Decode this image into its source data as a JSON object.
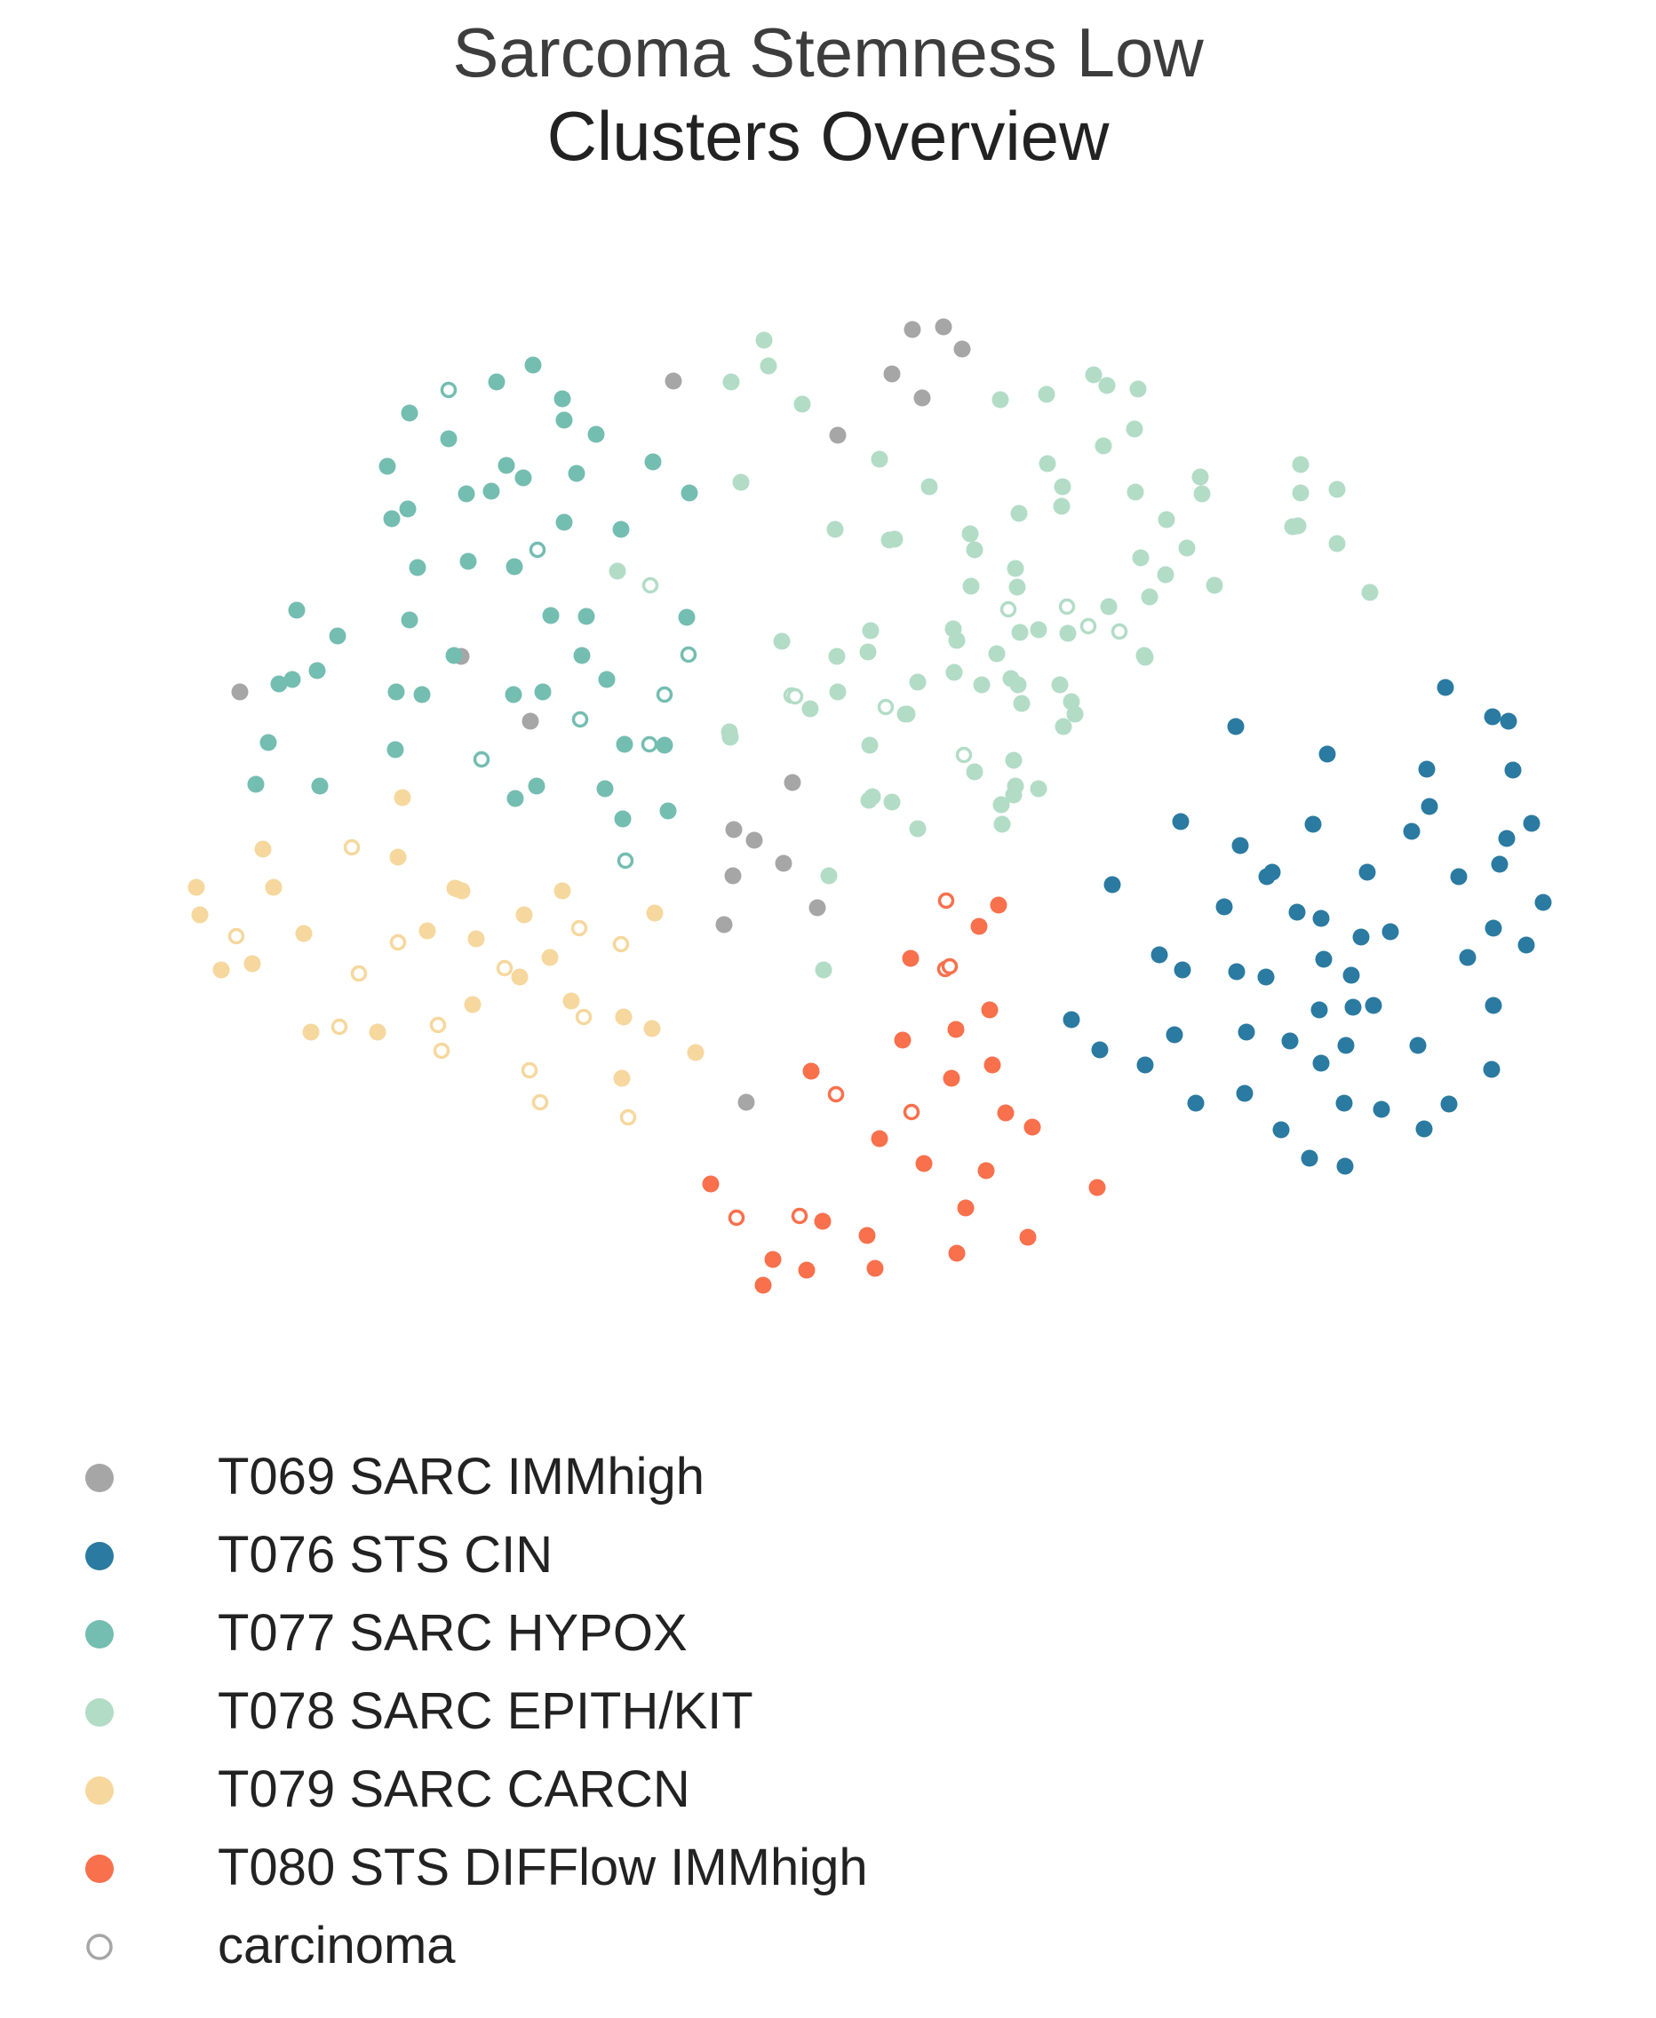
{
  "chart_data": {
    "type": "scatter",
    "title": "Sarcoma Stemness Low",
    "subtitle": "Clusters Overview",
    "xlabel": "",
    "ylabel": "",
    "grid": false,
    "axes_visible": false,
    "legend_position": "bottom-left",
    "series": [
      {
        "name": "T069 SARC IMMhigh",
        "color": "#a6a6a6",
        "points": [
          [
            1027,
            371
          ],
          [
            1062,
            368
          ],
          [
            1083,
            393
          ],
          [
            1004,
            421
          ],
          [
            1038,
            448
          ],
          [
            943,
            490
          ],
          [
            758,
            429
          ],
          [
            519,
            739
          ],
          [
            270,
            779
          ],
          [
            597,
            812
          ],
          [
            892,
            881
          ],
          [
            826,
            934
          ],
          [
            849,
            946
          ],
          [
            882,
            972
          ],
          [
            825,
            986
          ],
          [
            920,
            1022
          ],
          [
            815,
            1041
          ],
          [
            840,
            1241
          ]
        ]
      },
      {
        "name": "T076 STS CIN",
        "color": "#2a7aa1",
        "points": [
          [
            1627,
            774
          ],
          [
            1680,
            807
          ],
          [
            1698,
            812
          ],
          [
            1391,
            818
          ],
          [
            1494,
            849
          ],
          [
            1606,
            866
          ],
          [
            1703,
            867
          ],
          [
            1329,
            925
          ],
          [
            1478,
            928
          ],
          [
            1724,
            927
          ],
          [
            1609,
            908
          ],
          [
            1589,
            936
          ],
          [
            1396,
            952
          ],
          [
            1696,
            944
          ],
          [
            1688,
            973
          ],
          [
            1252,
            996
          ],
          [
            1432,
            982
          ],
          [
            1426,
            987
          ],
          [
            1539,
            982
          ],
          [
            1642,
            987
          ],
          [
            1737,
            1016
          ],
          [
            1378,
            1021
          ],
          [
            1460,
            1027
          ],
          [
            1487,
            1034
          ],
          [
            1532,
            1055
          ],
          [
            1565,
            1049
          ],
          [
            1681,
            1045
          ],
          [
            1718,
            1064
          ],
          [
            1305,
            1075
          ],
          [
            1490,
            1080
          ],
          [
            1652,
            1078
          ],
          [
            1331,
            1092
          ],
          [
            1392,
            1094
          ],
          [
            1425,
            1100
          ],
          [
            1521,
            1098
          ],
          [
            1485,
            1137
          ],
          [
            1523,
            1134
          ],
          [
            1546,
            1132
          ],
          [
            1681,
            1132
          ],
          [
            1206,
            1148
          ],
          [
            1322,
            1165
          ],
          [
            1403,
            1162
          ],
          [
            1452,
            1172
          ],
          [
            1515,
            1177
          ],
          [
            1238,
            1182
          ],
          [
            1289,
            1199
          ],
          [
            1596,
            1177
          ],
          [
            1487,
            1197
          ],
          [
            1679,
            1204
          ],
          [
            1401,
            1231
          ],
          [
            1346,
            1242
          ],
          [
            1513,
            1242
          ],
          [
            1555,
            1249
          ],
          [
            1631,
            1243
          ],
          [
            1442,
            1272
          ],
          [
            1603,
            1271
          ],
          [
            1474,
            1304
          ],
          [
            1514,
            1313
          ]
        ]
      },
      {
        "name": "T077 SARC HYPOX",
        "color": "#74bdb1",
        "points": [
          [
            600,
            411
          ],
          [
            559,
            430
          ],
          [
            633,
            449
          ],
          [
            461,
            465
          ],
          [
            505,
            494
          ],
          [
            671,
            489
          ],
          [
            635,
            473
          ],
          [
            436,
            525
          ],
          [
            570,
            524
          ],
          [
            589,
            538
          ],
          [
            649,
            533
          ],
          [
            735,
            520
          ],
          [
            525,
            556
          ],
          [
            553,
            553
          ],
          [
            776,
            555
          ],
          [
            441,
            584
          ],
          [
            459,
            573
          ],
          [
            635,
            588
          ],
          [
            699,
            596
          ],
          [
            470,
            639
          ],
          [
            527,
            632
          ],
          [
            579,
            638
          ],
          [
            334,
            687
          ],
          [
            380,
            716
          ],
          [
            461,
            698
          ],
          [
            620,
            693
          ],
          [
            660,
            694
          ],
          [
            773,
            695
          ],
          [
            357,
            755
          ],
          [
            511,
            738
          ],
          [
            314,
            770
          ],
          [
            329,
            765
          ],
          [
            446,
            779
          ],
          [
            475,
            782
          ],
          [
            578,
            782
          ],
          [
            611,
            779
          ],
          [
            655,
            738
          ],
          [
            683,
            765
          ],
          [
            302,
            836
          ],
          [
            445,
            844
          ],
          [
            703,
            838
          ],
          [
            748,
            839
          ],
          [
            288,
            883
          ],
          [
            360,
            885
          ],
          [
            580,
            899
          ],
          [
            604,
            885
          ],
          [
            681,
            888
          ],
          [
            701,
            922
          ],
          [
            752,
            913
          ]
        ]
      },
      {
        "name": "T078 SARC EPITH/KIT",
        "color": "#b2dcc6",
        "points": [
          [
            860,
            383
          ],
          [
            865,
            412
          ],
          [
            823,
            430
          ],
          [
            903,
            455
          ],
          [
            1126,
            450
          ],
          [
            1178,
            444
          ],
          [
            1179,
            522
          ],
          [
            1281,
            438
          ],
          [
            1231,
            422
          ],
          [
            1246,
            434
          ],
          [
            1277,
            483
          ],
          [
            1242,
            502
          ],
          [
            990,
            517
          ],
          [
            1464,
            523
          ],
          [
            834,
            543
          ],
          [
            1046,
            548
          ],
          [
            1196,
            548
          ],
          [
            1278,
            554
          ],
          [
            1353,
            556
          ],
          [
            1464,
            555
          ],
          [
            1351,
            537
          ],
          [
            1505,
            551
          ],
          [
            1147,
            578
          ],
          [
            1195,
            570
          ],
          [
            1313,
            585
          ],
          [
            1461,
            592
          ],
          [
            1092,
            601
          ],
          [
            1007,
            607
          ],
          [
            1097,
            619
          ],
          [
            1336,
            617
          ],
          [
            1284,
            628
          ],
          [
            1312,
            647
          ],
          [
            1093,
            660
          ],
          [
            1455,
            593
          ],
          [
            1505,
            612
          ],
          [
            940,
            596
          ],
          [
            1001,
            608
          ],
          [
            1143,
            640
          ],
          [
            1367,
            659
          ],
          [
            695,
            643
          ],
          [
            1145,
            661
          ],
          [
            1248,
            683
          ],
          [
            1294,
            672
          ],
          [
            1542,
            667
          ],
          [
            1073,
            708
          ],
          [
            1169,
            709
          ],
          [
            1148,
            712
          ],
          [
            1202,
            713
          ],
          [
            980,
            710
          ],
          [
            1077,
            721
          ],
          [
            1288,
            738
          ],
          [
            1122,
            736
          ],
          [
            1074,
            757
          ],
          [
            1105,
            771
          ],
          [
            1146,
            771
          ],
          [
            1206,
            790
          ],
          [
            1289,
            740
          ],
          [
            1150,
            792
          ],
          [
            1193,
            771
          ],
          [
            1210,
            804
          ],
          [
            1138,
            764
          ],
          [
            912,
            798
          ],
          [
            1021,
            804
          ],
          [
            1197,
            818
          ],
          [
            880,
            722
          ],
          [
            977,
            734
          ],
          [
            942,
            739
          ],
          [
            1033,
            768
          ],
          [
            821,
            824
          ],
          [
            822,
            830
          ],
          [
            943,
            779
          ],
          [
            979,
            839
          ],
          [
            1019,
            804
          ],
          [
            1004,
            903
          ],
          [
            1141,
            856
          ],
          [
            1169,
            888
          ],
          [
            1128,
            928
          ],
          [
            1033,
            933
          ],
          [
            978,
            901
          ],
          [
            1143,
            885
          ],
          [
            1141,
            895
          ],
          [
            1127,
            906
          ],
          [
            1097,
            869
          ],
          [
            982,
            897
          ],
          [
            933,
            986
          ],
          [
            927,
            1092
          ]
        ]
      },
      {
        "name": "T079 SARC CARCN",
        "color": "#f6d79d",
        "points": [
          [
            453,
            898
          ],
          [
            296,
            956
          ],
          [
            448,
            965
          ],
          [
            221,
            999
          ],
          [
            308,
            999
          ],
          [
            512,
            1000
          ],
          [
            515,
            1001
          ],
          [
            225,
            1030
          ],
          [
            633,
            1003
          ],
          [
            520,
            1003
          ],
          [
            481,
            1048
          ],
          [
            536,
            1057
          ],
          [
            590,
            1030
          ],
          [
            737,
            1028
          ],
          [
            342,
            1051
          ],
          [
            619,
            1078
          ],
          [
            284,
            1085
          ],
          [
            249,
            1092
          ],
          [
            585,
            1100
          ],
          [
            532,
            1131
          ],
          [
            702,
            1145
          ],
          [
            643,
            1127
          ],
          [
            350,
            1162
          ],
          [
            734,
            1158
          ],
          [
            425,
            1162
          ],
          [
            783,
            1185
          ],
          [
            700,
            1214
          ]
        ]
      },
      {
        "name": "T080 STS DIFFlow IMMhigh",
        "color": "#f8704c",
        "points": [
          [
            1124,
            1019
          ],
          [
            1102,
            1043
          ],
          [
            1025,
            1079
          ],
          [
            1114,
            1137
          ],
          [
            1076,
            1159
          ],
          [
            1016,
            1171
          ],
          [
            913,
            1206
          ],
          [
            1117,
            1199
          ],
          [
            1071,
            1214
          ],
          [
            1132,
            1253
          ],
          [
            1162,
            1269
          ],
          [
            990,
            1282
          ],
          [
            1110,
            1318
          ],
          [
            1040,
            1310
          ],
          [
            800,
            1333
          ],
          [
            1235,
            1337
          ],
          [
            1087,
            1360
          ],
          [
            1157,
            1393
          ],
          [
            926,
            1375
          ],
          [
            976,
            1391
          ],
          [
            870,
            1418
          ],
          [
            1077,
            1411
          ],
          [
            985,
            1428
          ],
          [
            908,
            1430
          ],
          [
            859,
            1447
          ]
        ]
      },
      {
        "name": "carcinoma",
        "color": "#a6a6a6",
        "open": true,
        "points": [
          [
            505,
            439
          ],
          [
            605,
            619
          ],
          [
            732,
            659
          ],
          [
            775,
            737
          ],
          [
            1135,
            686
          ],
          [
            1201,
            683
          ],
          [
            1225,
            705
          ],
          [
            1260,
            711
          ],
          [
            891,
            783
          ],
          [
            748,
            782
          ],
          [
            653,
            810
          ],
          [
            731,
            838
          ],
          [
            997,
            796
          ],
          [
            542,
            855
          ],
          [
            1085,
            850
          ],
          [
            895,
            784
          ],
          [
            396,
            954
          ],
          [
            704,
            969
          ],
          [
            266,
            1054
          ],
          [
            448,
            1061
          ],
          [
            568,
            1090
          ],
          [
            652,
            1045
          ],
          [
            404,
            1096
          ],
          [
            699,
            1063
          ],
          [
            382,
            1156
          ],
          [
            493,
            1154
          ],
          [
            497,
            1183
          ],
          [
            657,
            1145
          ],
          [
            596,
            1205
          ],
          [
            608,
            1241
          ],
          [
            707,
            1258
          ],
          [
            1064,
            1091
          ],
          [
            1069,
            1088
          ],
          [
            1065,
            1014
          ],
          [
            941,
            1232
          ],
          [
            1026,
            1252
          ],
          [
            900,
            1369
          ],
          [
            829,
            1371
          ]
        ]
      }
    ]
  }
}
